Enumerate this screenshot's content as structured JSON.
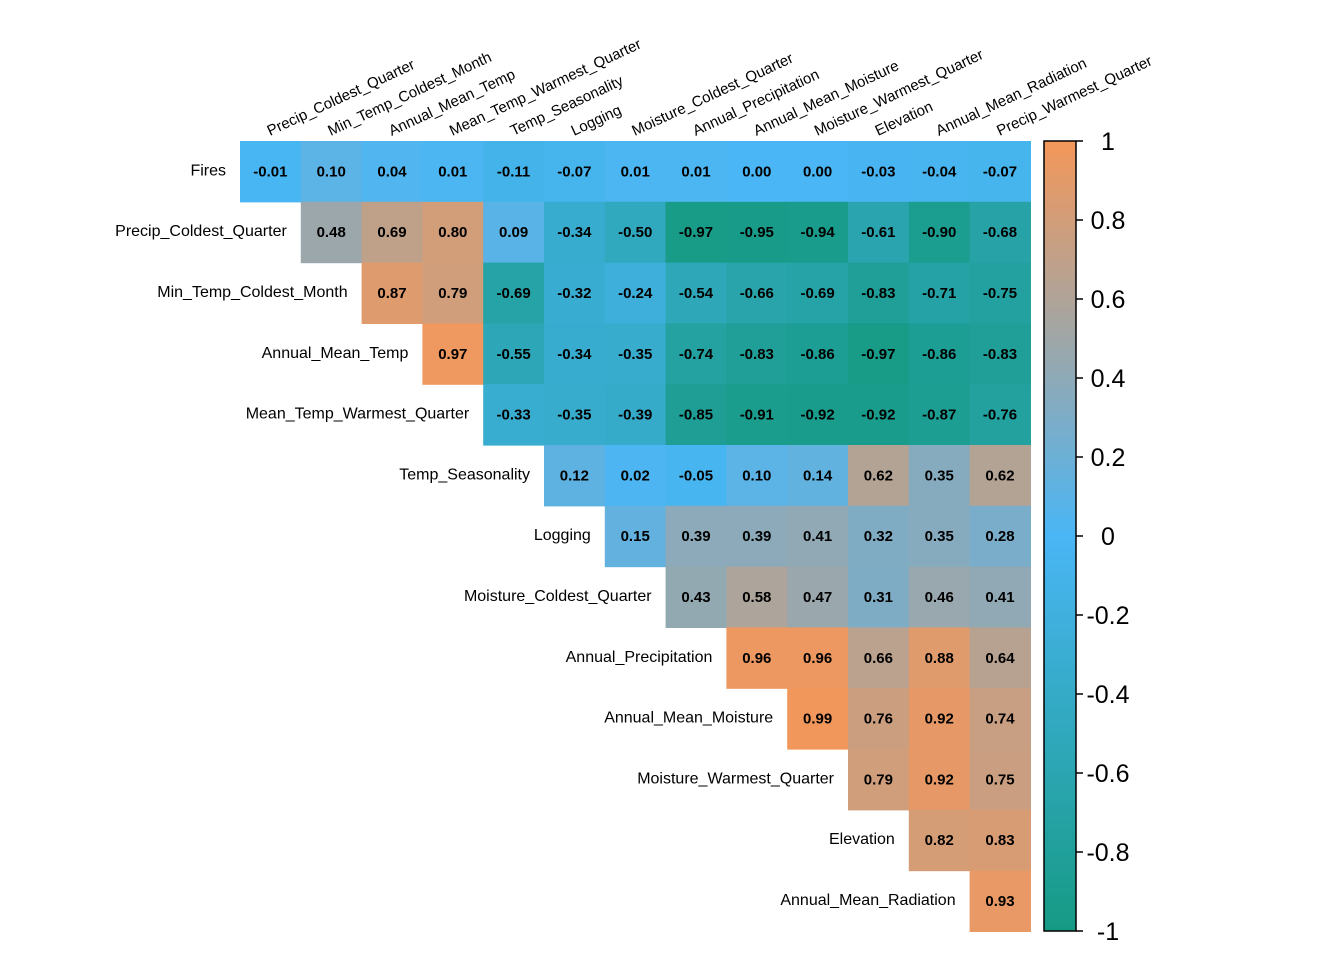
{
  "chart_data": {
    "type": "heatmap",
    "row_labels": [
      "Fires",
      "Precip_Coldest_Quarter",
      "Min_Temp_Coldest_Month",
      "Annual_Mean_Temp",
      "Mean_Temp_Warmest_Quarter",
      "Temp_Seasonality",
      "Logging",
      "Moisture_Coldest_Quarter",
      "Annual_Precipitation",
      "Annual_Mean_Moisture",
      "Moisture_Warmest_Quarter",
      "Elevation",
      "Annual_Mean_Radiation"
    ],
    "column_labels": [
      "Precip_Coldest_Quarter",
      "Min_Temp_Coldest_Month",
      "Annual_Mean_Temp",
      "Mean_Temp_Warmest_Quarter",
      "Temp_Seasonality",
      "Logging",
      "Moisture_Coldest_Quarter",
      "Annual_Precipitation",
      "Annual_Mean_Moisture",
      "Moisture_Warmest_Quarter",
      "Elevation",
      "Annual_Mean_Radiation",
      "Precip_Warmest_Quarter"
    ],
    "values": [
      [
        -0.01,
        0.1,
        0.04,
        0.01,
        -0.11,
        -0.07,
        0.01,
        0.01,
        0.0,
        0.0,
        -0.03,
        -0.04,
        -0.07
      ],
      [
        0.48,
        0.69,
        0.8,
        0.09,
        -0.34,
        -0.5,
        -0.97,
        -0.95,
        -0.94,
        -0.61,
        -0.9,
        -0.68
      ],
      [
        0.87,
        0.79,
        -0.69,
        -0.32,
        -0.24,
        -0.54,
        -0.66,
        -0.69,
        -0.83,
        -0.71,
        -0.75
      ],
      [
        0.97,
        -0.55,
        -0.34,
        -0.35,
        -0.74,
        -0.83,
        -0.86,
        -0.97,
        -0.86,
        -0.83
      ],
      [
        -0.33,
        -0.35,
        -0.39,
        -0.85,
        -0.91,
        -0.92,
        -0.92,
        -0.87,
        -0.76
      ],
      [
        0.12,
        0.02,
        -0.05,
        0.1,
        0.14,
        0.62,
        0.35,
        0.62
      ],
      [
        0.15,
        0.39,
        0.39,
        0.41,
        0.32,
        0.35,
        0.28
      ],
      [
        0.43,
        0.58,
        0.47,
        0.31,
        0.46,
        0.41
      ],
      [
        0.96,
        0.96,
        0.66,
        0.88,
        0.64
      ],
      [
        0.99,
        0.76,
        0.92,
        0.74
      ],
      [
        0.79,
        0.92,
        0.75
      ],
      [
        0.82,
        0.83
      ],
      [
        0.93
      ]
    ],
    "value_range": [
      -1,
      1
    ],
    "colorbar": {
      "ticks": [
        1,
        0.8,
        0.6,
        0.4,
        0.2,
        0,
        -0.2,
        -0.4,
        -0.6,
        -0.8,
        -1
      ],
      "tick_labels": [
        "1",
        "0.8",
        "0.6",
        "0.4",
        "0.2",
        "0",
        "-0.2",
        "-0.4",
        "-0.6",
        "-0.8",
        "-1"
      ],
      "colors": {
        "low": "#169a84",
        "mid": "#4ab6f5",
        "high": "#f4975a"
      },
      "placement": "right"
    }
  }
}
